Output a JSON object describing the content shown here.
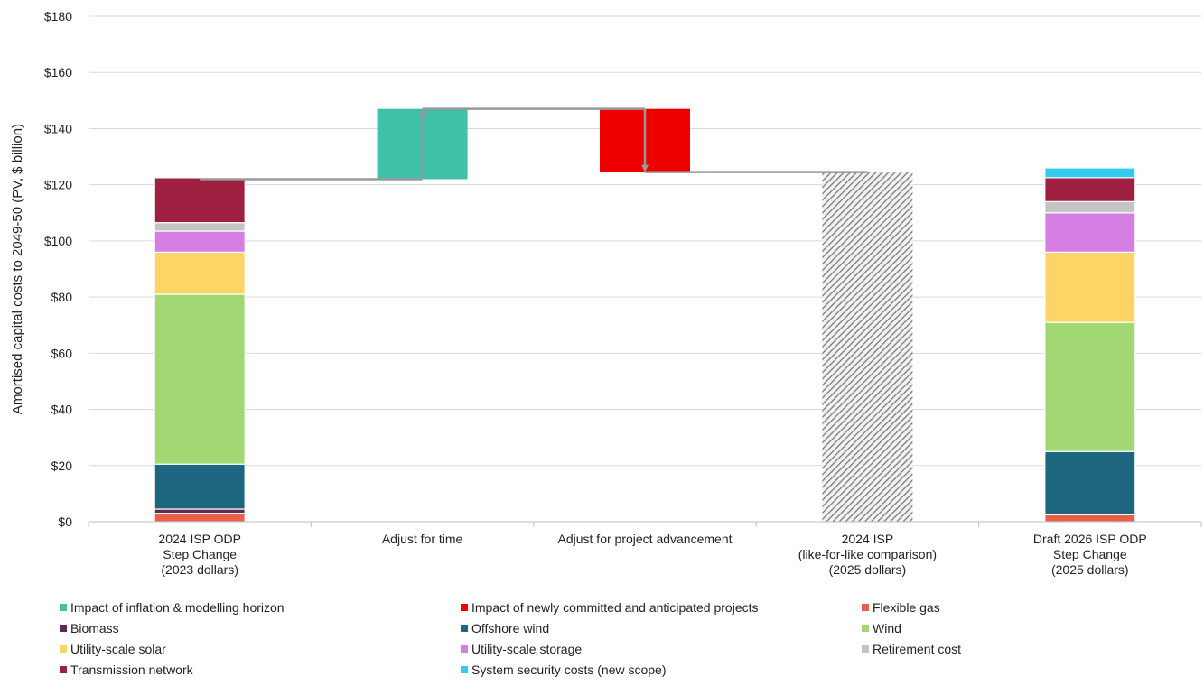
{
  "chart_data": {
    "type": "bar",
    "subtype": "stacked-waterfall",
    "title": "",
    "ylabel": "Amortised capital costs to 2049-50 (PV, $ billion)",
    "ylim": [
      0,
      180
    ],
    "y_ticks": [
      "$0",
      "$20",
      "$40",
      "$60",
      "$80",
      "$100",
      "$120",
      "$140",
      "$160",
      "$180"
    ],
    "y_tick_values": [
      0,
      20,
      40,
      60,
      80,
      100,
      120,
      140,
      160,
      180
    ],
    "grid": true,
    "legend_position": "bottom",
    "categories": [
      [
        "2024 ISP ODP",
        "Step Change",
        "(2023 dollars)"
      ],
      [
        "Adjust for time"
      ],
      [
        "Adjust for project advancement"
      ],
      [
        "2024 ISP",
        "(like-for-like comparison)",
        "(2025 dollars)"
      ],
      [
        "Draft 2026 ISP ODP",
        "Step Change",
        "(2025 dollars)"
      ]
    ],
    "series": [
      {
        "name": "Impact of inflation & modelling horizon",
        "color": "#3fc1aa",
        "values": [
          0,
          25,
          0,
          0,
          0
        ]
      },
      {
        "name": "Impact of newly committed and anticipated projects",
        "color": "#ee0000",
        "values": [
          0,
          0,
          23,
          0,
          0
        ]
      },
      {
        "name": "Flexible gas",
        "color": "#e8604a",
        "values": [
          3,
          0,
          0,
          0,
          2.5
        ]
      },
      {
        "name": "Biomass",
        "color": "#5c2a53",
        "values": [
          1.5,
          0,
          0,
          0,
          0
        ]
      },
      {
        "name": "Offshore wind",
        "color": "#1d6680",
        "values": [
          16,
          0,
          0,
          0,
          22.5
        ]
      },
      {
        "name": "Wind",
        "color": "#a1d874",
        "values": [
          60.5,
          0,
          0,
          0,
          46
        ]
      },
      {
        "name": "Utility-scale solar",
        "color": "#ffd466",
        "values": [
          15,
          0,
          0,
          0,
          25
        ]
      },
      {
        "name": "Utility-scale storage",
        "color": "#d57ee3",
        "values": [
          7.5,
          0,
          0,
          0,
          14
        ]
      },
      {
        "name": "Retirement cost",
        "color": "#c4c4c4",
        "values": [
          3,
          0,
          0,
          0,
          4
        ]
      },
      {
        "name": "Transmission network",
        "color": "#9e1f3f",
        "values": [
          16,
          0,
          0,
          0,
          8.5
        ]
      },
      {
        "name": "System security costs (new scope)",
        "color": "#33ccee",
        "values": [
          0,
          0,
          0,
          0,
          3.5
        ]
      }
    ],
    "waterfall": {
      "start_total": 122,
      "after_time_adjustment": 147,
      "after_project_adjustment": 124.5,
      "like_for_like_total": 124.5,
      "time_adjustment": [
        122,
        147
      ],
      "project_adjustment": [
        124.5,
        147
      ],
      "like_for_like_bar": [
        0,
        124.5
      ],
      "like_for_like_pattern": "hatched-grey"
    },
    "colors": {
      "grid": "#d9d9d9",
      "connector": "#999999"
    }
  }
}
